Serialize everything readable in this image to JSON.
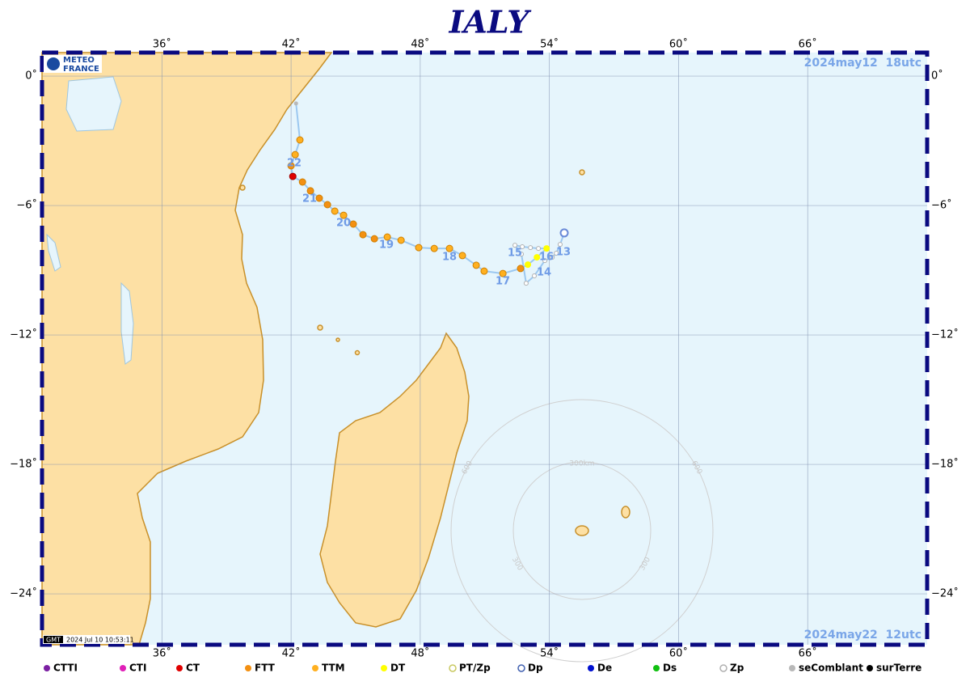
{
  "title": "IALY",
  "logo": {
    "line1": "METEO",
    "line2": "FRANCE"
  },
  "map": {
    "xlim": [
      30.43,
      71.55
    ],
    "ylim": [
      -26.36,
      1.09
    ],
    "xticks": [
      {
        "value": 36,
        "label": "36˚"
      },
      {
        "value": 42,
        "label": "42˚"
      },
      {
        "value": 48,
        "label": "48˚"
      },
      {
        "value": 54,
        "label": "54˚"
      },
      {
        "value": 60,
        "label": "60˚"
      },
      {
        "value": 66,
        "label": "66˚"
      }
    ],
    "yticks": [
      {
        "value": 0,
        "label": "0˚"
      },
      {
        "value": -6,
        "label": "−6˚"
      },
      {
        "value": -12,
        "label": "−12˚"
      },
      {
        "value": -18,
        "label": "−18˚"
      },
      {
        "value": -24,
        "label": "−24˚"
      }
    ]
  },
  "start_date": "2024may12  18utc",
  "end_date": "2024may22  12utc",
  "track": [
    {
      "lon": 54.69,
      "lat": -7.27,
      "status": "Dp"
    },
    {
      "lon": 54.5,
      "lat": -7.8,
      "status": "Zp"
    },
    {
      "lon": 54.32,
      "lat": -8.21,
      "status": "Zp"
    },
    {
      "lon": 54.13,
      "lat": -8.4,
      "status": "Zp"
    },
    {
      "lon": 53.79,
      "lat": -8.55,
      "status": "Zp"
    },
    {
      "lon": 53.3,
      "lat": -9.26,
      "status": "Zp"
    },
    {
      "lon": 52.92,
      "lat": -9.6,
      "status": "Zp"
    },
    {
      "lon": 52.7,
      "lat": -8.25,
      "status": "Zp"
    },
    {
      "lon": 52.4,
      "lat": -7.84,
      "status": "Zp"
    },
    {
      "lon": 52.74,
      "lat": -7.91,
      "status": "Zp"
    },
    {
      "lon": 53.12,
      "lat": -7.95,
      "status": "Zp"
    },
    {
      "lon": 53.49,
      "lat": -7.99,
      "status": "Zp"
    },
    {
      "lon": 53.87,
      "lat": -7.99,
      "status": "DT"
    },
    {
      "lon": 53.42,
      "lat": -8.4,
      "status": "DT"
    },
    {
      "lon": 53.0,
      "lat": -8.74,
      "status": "DT"
    },
    {
      "lon": 52.66,
      "lat": -8.92,
      "status": "FTT"
    },
    {
      "lon": 51.84,
      "lat": -9.15,
      "status": "TTM"
    },
    {
      "lon": 50.97,
      "lat": -9.04,
      "status": "TTM"
    },
    {
      "lon": 50.6,
      "lat": -8.77,
      "status": "TTM"
    },
    {
      "lon": 49.96,
      "lat": -8.32,
      "status": "TTM"
    },
    {
      "lon": 49.36,
      "lat": -7.99,
      "status": "TTM"
    },
    {
      "lon": 48.65,
      "lat": -7.99,
      "status": "TTM"
    },
    {
      "lon": 47.93,
      "lat": -7.95,
      "status": "TTM"
    },
    {
      "lon": 47.11,
      "lat": -7.61,
      "status": "TTM"
    },
    {
      "lon": 46.47,
      "lat": -7.46,
      "status": "TTM"
    },
    {
      "lon": 45.87,
      "lat": -7.54,
      "status": "FTT"
    },
    {
      "lon": 45.34,
      "lat": -7.35,
      "status": "FTT"
    },
    {
      "lon": 44.89,
      "lat": -6.86,
      "status": "FTT"
    },
    {
      "lon": 44.44,
      "lat": -6.45,
      "status": "TTM"
    },
    {
      "lon": 44.03,
      "lat": -6.26,
      "status": "TTM"
    },
    {
      "lon": 43.69,
      "lat": -5.96,
      "status": "FTT"
    },
    {
      "lon": 43.31,
      "lat": -5.66,
      "status": "FTT"
    },
    {
      "lon": 42.9,
      "lat": -5.32,
      "status": "FTT"
    },
    {
      "lon": 42.53,
      "lat": -4.91,
      "status": "FTT"
    },
    {
      "lon": 42.08,
      "lat": -4.65,
      "status": "CT"
    },
    {
      "lon": 42.0,
      "lat": -4.16,
      "status": "FTT"
    },
    {
      "lon": 42.19,
      "lat": -3.64,
      "status": "TTM"
    },
    {
      "lon": 42.41,
      "lat": -2.96,
      "status": "TTM"
    },
    {
      "lon": 42.23,
      "lat": -1.27,
      "status": "seComblant"
    }
  ],
  "day_labels": [
    "13",
    "14",
    "15",
    "16",
    "17",
    "18",
    "19",
    "20",
    "21",
    "22"
  ],
  "range_rings": {
    "labels": [
      "300km",
      "600",
      "600",
      "300",
      "300"
    ]
  },
  "timestamp": "2024 Jul 10 10:53:11",
  "timestamp_zone": "GMT",
  "legend": [
    {
      "name": "CTTI",
      "color": "#7b1fa2",
      "hollow": false
    },
    {
      "name": "CTI",
      "color": "#e020b8",
      "hollow": false
    },
    {
      "name": "CT",
      "color": "#e00000",
      "hollow": false
    },
    {
      "name": "FTT",
      "color": "#f39012",
      "hollow": false
    },
    {
      "name": "TTM",
      "color": "#ffb020",
      "hollow": false
    },
    {
      "name": "DT",
      "color": "#ffff00",
      "hollow": false
    },
    {
      "name": "PT/Zp",
      "color": "#c8c860",
      "hollow": true
    },
    {
      "name": "Dp",
      "color": "#4060b0",
      "hollow": true
    },
    {
      "name": "De",
      "color": "#0010d0",
      "hollow": false
    },
    {
      "name": "Ds",
      "color": "#10c010",
      "hollow": false
    },
    {
      "name": "Zp",
      "color": "#b0b0b0",
      "hollow": true
    },
    {
      "name": "seComblant",
      "color": "#b8b8b8",
      "hollow": false
    },
    {
      "name": "surTerre",
      "color": "#000000",
      "hollow": false
    }
  ]
}
